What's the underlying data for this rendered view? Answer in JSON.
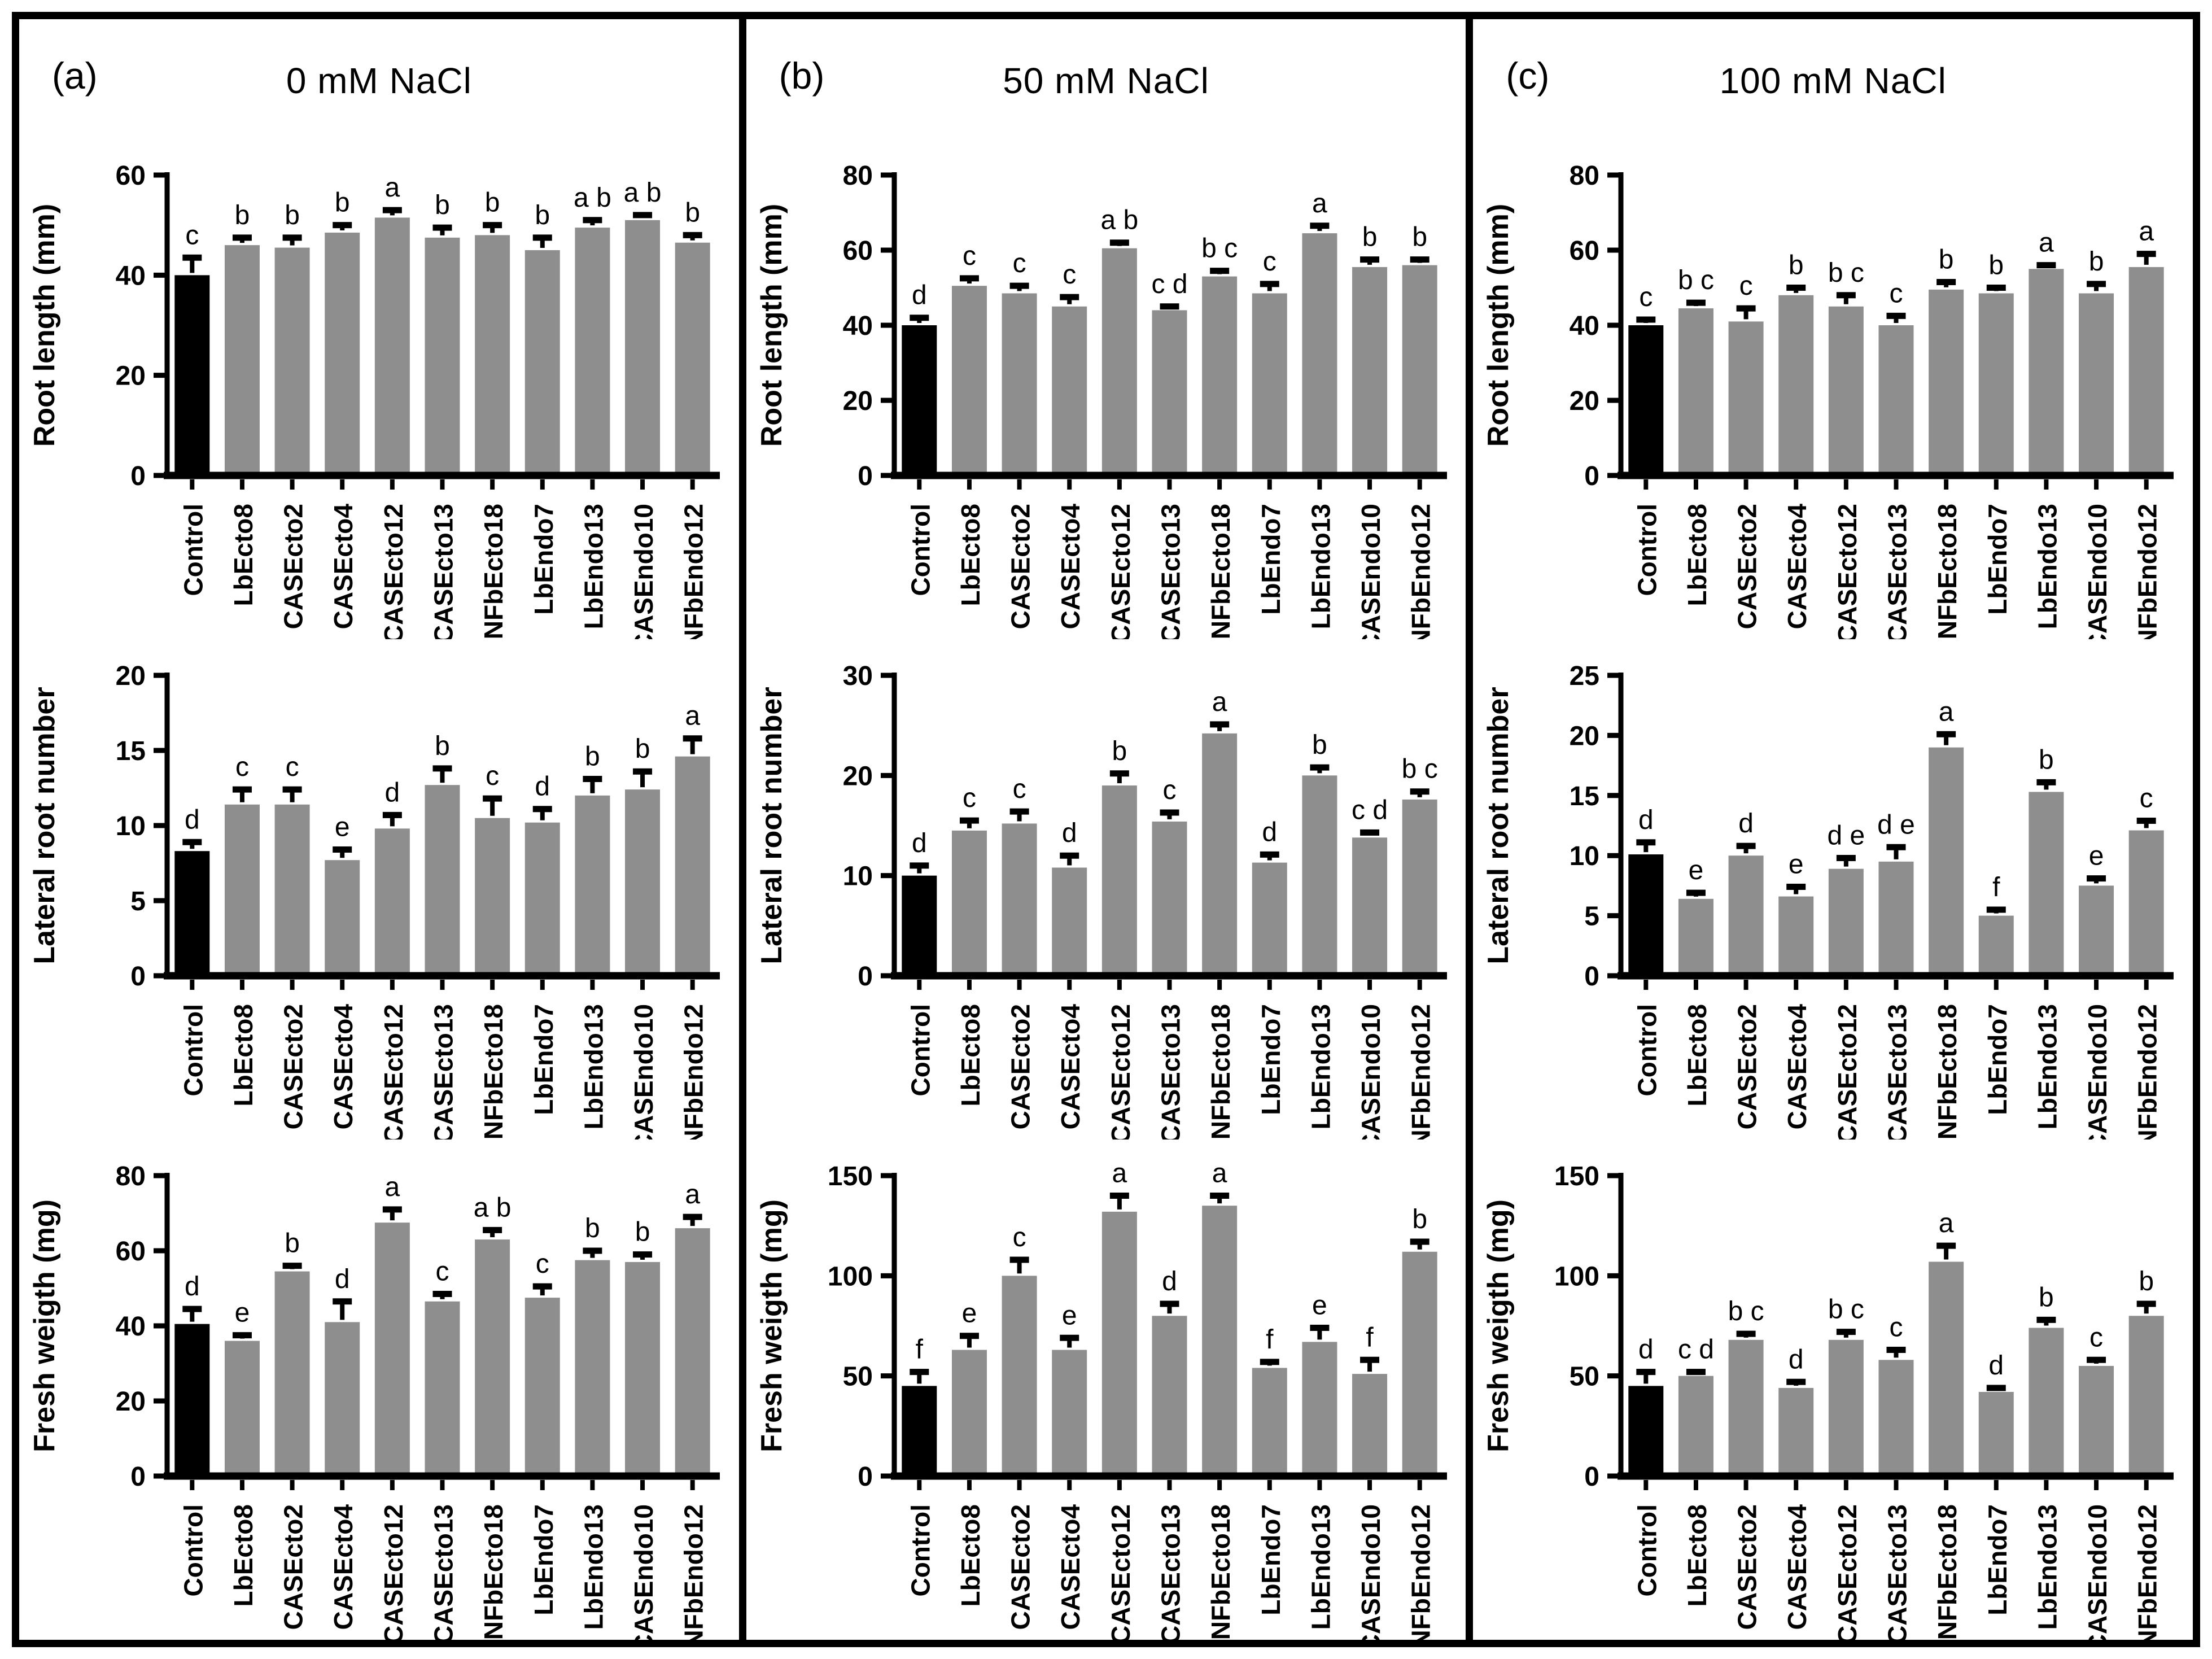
{
  "panels": [
    {
      "label": "(a)",
      "title": "0 mM  NaCl"
    },
    {
      "label": "(b)",
      "title": "50 mM NaCl"
    },
    {
      "label": "(c)",
      "title": "100 mM NaCl"
    }
  ],
  "colors": {
    "background": "#ffffff",
    "bar": "#8e8e8e",
    "control_bar": "#000000",
    "axis": "#000000",
    "text": "#000000",
    "frame": "#000000"
  },
  "chart_data": {
    "type": "bar",
    "layout": "3x3-grid",
    "grid": false,
    "legend": "none",
    "error_bars": "upper-only",
    "shared_categories": [
      "Control",
      "LbEcto8",
      "CASEcto2",
      "CASEcto4",
      "CASEcto12",
      "CASEcto13",
      "NFbEcto18",
      "LbEndo7",
      "LbEndo13",
      "CASEndo10",
      "NFbEndo12"
    ],
    "charts": [
      {
        "panel": "(a)",
        "panel_title": "0 mM  NaCl",
        "row": 1,
        "ylabel": "Root length (mm)",
        "ylim": [
          0,
          60
        ],
        "yticks": [
          0,
          20,
          40,
          60
        ],
        "values": [
          40,
          46,
          45.5,
          48.5,
          51.5,
          47.5,
          48,
          45,
          49.5,
          51,
          46.5
        ],
        "errors": [
          3.5,
          1.5,
          2,
          1.5,
          1.5,
          2,
          2,
          2.5,
          1.5,
          1,
          1.5
        ],
        "letters": [
          "c",
          "b",
          "b",
          "b",
          "a",
          "b",
          "b",
          "b",
          "a b",
          "a b",
          "b"
        ]
      },
      {
        "panel": "(a)",
        "panel_title": "0 mM  NaCl",
        "row": 2,
        "ylabel": "Lateral root number",
        "ylim": [
          0,
          20
        ],
        "yticks": [
          0,
          5,
          10,
          15,
          20
        ],
        "values": [
          8.3,
          11.4,
          11.4,
          7.7,
          9.8,
          12.7,
          10.5,
          10.2,
          12,
          12.4,
          14.6
        ],
        "errors": [
          0.6,
          1,
          1,
          0.7,
          0.9,
          1.1,
          1.3,
          0.9,
          1.1,
          1.2,
          1.2
        ],
        "letters": [
          "d",
          "c",
          "c",
          "e",
          "d",
          "b",
          "c",
          "d",
          "b",
          "b",
          "a"
        ]
      },
      {
        "panel": "(a)",
        "panel_title": "0 mM  NaCl",
        "row": 3,
        "ylabel": "Fresh weigth (mg)",
        "ylim": [
          0,
          80
        ],
        "yticks": [
          0,
          20,
          40,
          60,
          80
        ],
        "values": [
          40.5,
          36,
          54.5,
          41,
          67.5,
          46.5,
          63,
          47.5,
          57.5,
          57,
          66
        ],
        "errors": [
          4,
          1.5,
          1.5,
          5.5,
          3.5,
          2,
          2.5,
          3,
          2.5,
          2,
          3
        ],
        "letters": [
          "d",
          "e",
          "b",
          "d",
          "a",
          "c",
          "a b",
          "c",
          "b",
          "b",
          "a"
        ]
      },
      {
        "panel": "(b)",
        "panel_title": "50 mM NaCl",
        "row": 1,
        "ylabel": "Root length (mm)",
        "ylim": [
          0,
          80
        ],
        "yticks": [
          0,
          20,
          40,
          60,
          80
        ],
        "values": [
          40,
          50.5,
          48.5,
          45,
          60.5,
          44,
          53,
          48.5,
          64.5,
          55.5,
          56
        ],
        "errors": [
          2,
          2,
          2,
          2.5,
          1.5,
          1,
          1.5,
          2.5,
          2,
          2,
          1.5
        ],
        "letters": [
          "d",
          "c",
          "c",
          "c",
          "a b",
          "c d",
          "b c",
          "c",
          "a",
          "b",
          "b"
        ]
      },
      {
        "panel": "(b)",
        "panel_title": "50 mM NaCl",
        "row": 2,
        "ylabel": "Lateral root number",
        "ylim": [
          0,
          30
        ],
        "yticks": [
          0,
          10,
          20,
          30
        ],
        "values": [
          10,
          14.5,
          15.2,
          10.8,
          19,
          15.4,
          24.2,
          11.3,
          20,
          13.8,
          17.6
        ],
        "errors": [
          1,
          1,
          1.2,
          1.2,
          1.2,
          0.9,
          0.9,
          0.8,
          0.8,
          0.5,
          0.8
        ],
        "letters": [
          "d",
          "c",
          "c",
          "d",
          "b",
          "c",
          "a",
          "d",
          "b",
          "c d",
          "b c"
        ]
      },
      {
        "panel": "(b)",
        "panel_title": "50 mM NaCl",
        "row": 3,
        "ylabel": "Fresh weigth (mg)",
        "ylim": [
          0,
          150
        ],
        "yticks": [
          0,
          50,
          100,
          150
        ],
        "values": [
          45,
          63,
          100,
          63,
          132,
          80,
          135,
          54,
          67,
          51,
          112
        ],
        "errors": [
          7,
          7,
          8,
          6,
          8,
          6,
          5,
          3,
          7,
          7,
          5
        ],
        "letters": [
          "f",
          "e",
          "c",
          "e",
          "a",
          "d",
          "a",
          "f",
          "e",
          "f",
          "b"
        ]
      },
      {
        "panel": "(c)",
        "panel_title": "100 mM NaCl",
        "row": 1,
        "ylabel": "Root length (mm)",
        "ylim": [
          0,
          80
        ],
        "yticks": [
          0,
          20,
          40,
          60,
          80
        ],
        "values": [
          40,
          44.5,
          41,
          48,
          45,
          40,
          49.5,
          48.5,
          55,
          48.5,
          55.5
        ],
        "errors": [
          1.5,
          1.5,
          3.5,
          2,
          3,
          2.5,
          2,
          1.5,
          1,
          2.5,
          3.5
        ],
        "letters": [
          "c",
          "b c",
          "c",
          "b",
          "b c",
          "c",
          "b",
          "b",
          "a",
          "b",
          "a"
        ]
      },
      {
        "panel": "(c)",
        "panel_title": "100 mM NaCl",
        "row": 2,
        "ylabel": "Lateral root number",
        "ylim": [
          0,
          25
        ],
        "yticks": [
          0,
          5,
          10,
          15,
          20,
          25
        ],
        "values": [
          10.1,
          6.4,
          10,
          6.6,
          8.9,
          9.5,
          19,
          5,
          15.3,
          7.5,
          12.1
        ],
        "errors": [
          1,
          0.5,
          0.8,
          0.8,
          0.9,
          1.2,
          1.1,
          0.5,
          0.8,
          0.6,
          0.8
        ],
        "letters": [
          "d",
          "e",
          "d",
          "e",
          "d e",
          "d e",
          "a",
          "f",
          "b",
          "e",
          "c"
        ]
      },
      {
        "panel": "(c)",
        "panel_title": "100 mM NaCl",
        "row": 3,
        "ylabel": "Fresh weigth (mg)",
        "ylim": [
          0,
          150
        ],
        "yticks": [
          0,
          50,
          100,
          150
        ],
        "values": [
          45,
          50,
          68,
          44,
          68,
          58,
          107,
          42,
          74,
          55,
          80
        ],
        "errors": [
          7,
          2,
          3,
          3,
          4,
          5,
          8,
          2,
          4,
          3,
          6
        ],
        "letters": [
          "d",
          "c d",
          "b c",
          "d",
          "b c",
          "c",
          "a",
          "d",
          "b",
          "c",
          "b"
        ]
      }
    ]
  }
}
